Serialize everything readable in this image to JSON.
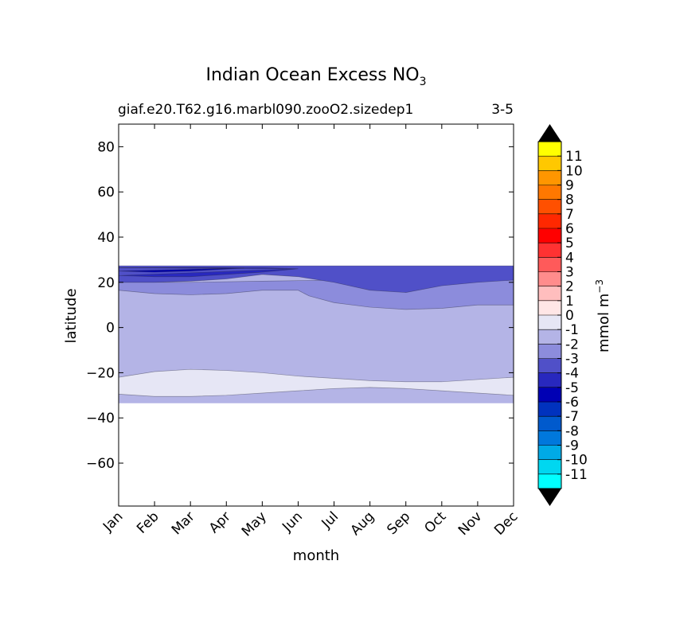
{
  "chart_data": {
    "type": "heatmap",
    "title": "Indian Ocean Excess NO",
    "title_subscript": "3",
    "subtitle_left": "giaf.e20.T62.g16.marbl090.zooO2.sizedep1",
    "subtitle_right": "3-5",
    "xlabel": "month",
    "ylabel": "latitude",
    "xlim": [
      0,
      11
    ],
    "ylim": [
      -79,
      90
    ],
    "x_ticks": [
      "Jan",
      "Feb",
      "Mar",
      "Apr",
      "May",
      "Jun",
      "Jul",
      "Aug",
      "Sep",
      "Oct",
      "Nov",
      "Dec"
    ],
    "y_ticks": [
      80,
      60,
      40,
      20,
      0,
      -20,
      -40,
      -60
    ],
    "y_tick_labels": [
      "80",
      "60",
      "40",
      "20",
      "0",
      "−20",
      "−40",
      "−60"
    ],
    "colorbar": {
      "label": "mmol m",
      "label_superscript": "−3",
      "levels": [
        -12,
        -11,
        -10,
        -9,
        -8,
        -7,
        -6,
        -5,
        -4,
        -3,
        -2,
        -1,
        0,
        1,
        2,
        3,
        4,
        5,
        6,
        7,
        8,
        9,
        10,
        11,
        12
      ],
      "tick_labels": [
        "-11",
        "-10",
        "-9",
        "-8",
        "-7",
        "-6",
        "-5",
        "-4",
        "-3",
        "-2",
        "-1",
        "0",
        "1",
        "2",
        "3",
        "4",
        "5",
        "6",
        "7",
        "8",
        "9",
        "10",
        "11"
      ],
      "colors": [
        "#00ffff",
        "#00d7f0",
        "#00aae6",
        "#0078dc",
        "#005acd",
        "#0032be",
        "#0000b4",
        "#2828be",
        "#5050c8",
        "#8c8cdc",
        "#b4b4e6",
        "#e6e6f5",
        "#ffe6e6",
        "#ffbebe",
        "#ff8c8c",
        "#ff5a5a",
        "#ff3232",
        "#ff0000",
        "#ff2800",
        "#ff5000",
        "#ff7800",
        "#ff9600",
        "#ffc800",
        "#ffff00"
      ],
      "extend": "both",
      "extend_color": "#000000"
    },
    "regions": [
      {
        "name": "band-minus-1-to-0",
        "value_range": [
          -1,
          0
        ],
        "color": "#e6e6f5",
        "upper": [
          [
            0,
            -22
          ],
          [
            1,
            -19.5
          ],
          [
            2,
            -18.5
          ],
          [
            3,
            -19
          ],
          [
            4,
            -20
          ],
          [
            5,
            -21.5
          ],
          [
            6,
            -22.5
          ],
          [
            7,
            -23.5
          ],
          [
            8,
            -24
          ],
          [
            9,
            -24
          ],
          [
            10,
            -23
          ],
          [
            11,
            -22
          ]
        ],
        "lower": [
          [
            0,
            -29.5
          ],
          [
            1,
            -30.5
          ],
          [
            2,
            -30.5
          ],
          [
            3,
            -30
          ],
          [
            4,
            -29
          ],
          [
            5,
            -28
          ],
          [
            6,
            -27
          ],
          [
            7,
            -26.5
          ],
          [
            8,
            -27
          ],
          [
            9,
            -28
          ],
          [
            10,
            -29
          ],
          [
            11,
            -30
          ]
        ]
      },
      {
        "name": "band-minus-3-to-2",
        "value_range": [
          -3,
          -2
        ],
        "color": "#8c8cdc",
        "upper": [
          [
            0,
            20
          ],
          [
            2,
            20
          ],
          [
            4,
            20.5
          ],
          [
            6,
            21
          ],
          [
            8,
            21
          ],
          [
            10,
            21
          ],
          [
            11,
            21
          ]
        ],
        "lower": [
          [
            0,
            16.5
          ],
          [
            1,
            15
          ],
          [
            2,
            14.5
          ],
          [
            3,
            15
          ],
          [
            4,
            16.5
          ],
          [
            5,
            16.5
          ],
          [
            5.3,
            14
          ],
          [
            6,
            11
          ],
          [
            7,
            9
          ],
          [
            8,
            8
          ],
          [
            9,
            8.5
          ],
          [
            10,
            10
          ],
          [
            11,
            10
          ]
        ]
      },
      {
        "name": "band-minus-4-to-3",
        "value_range": [
          -4,
          -3
        ],
        "color": "#5050c8",
        "upper": [
          [
            0,
            27.3
          ],
          [
            11,
            27.3
          ]
        ],
        "lower": [
          [
            0,
            20
          ],
          [
            1,
            20
          ],
          [
            2,
            20.5
          ],
          [
            3,
            21.5
          ],
          [
            4,
            23.5
          ],
          [
            5,
            22.5
          ],
          [
            6,
            20
          ],
          [
            7,
            16.5
          ],
          [
            8,
            15.5
          ],
          [
            9,
            18.5
          ],
          [
            10,
            20
          ],
          [
            11,
            21
          ]
        ]
      },
      {
        "name": "band-minus-5-to-4",
        "value_range": [
          -5,
          -4
        ],
        "color": "#2828be",
        "upper": [
          [
            0,
            26.5
          ],
          [
            2,
            26.5
          ],
          [
            4,
            26.5
          ],
          [
            5,
            26
          ]
        ],
        "lower": [
          [
            5,
            26
          ],
          [
            4,
            24.5
          ],
          [
            3,
            23.5
          ],
          [
            2,
            22.5
          ],
          [
            1,
            22.5
          ],
          [
            0,
            23
          ]
        ]
      },
      {
        "name": "band-minus-6-to-5",
        "value_range": [
          -6,
          -5
        ],
        "color": "#0000b4",
        "upper": [
          [
            0,
            26.5
          ],
          [
            2,
            26.5
          ],
          [
            3.5,
            26.3
          ]
        ],
        "lower": [
          [
            3.5,
            26.3
          ],
          [
            2,
            25
          ],
          [
            1,
            24.5
          ],
          [
            0,
            25
          ]
        ]
      }
    ],
    "data_extent": {
      "north": 27.3,
      "south": -33.5
    },
    "annotations": []
  }
}
